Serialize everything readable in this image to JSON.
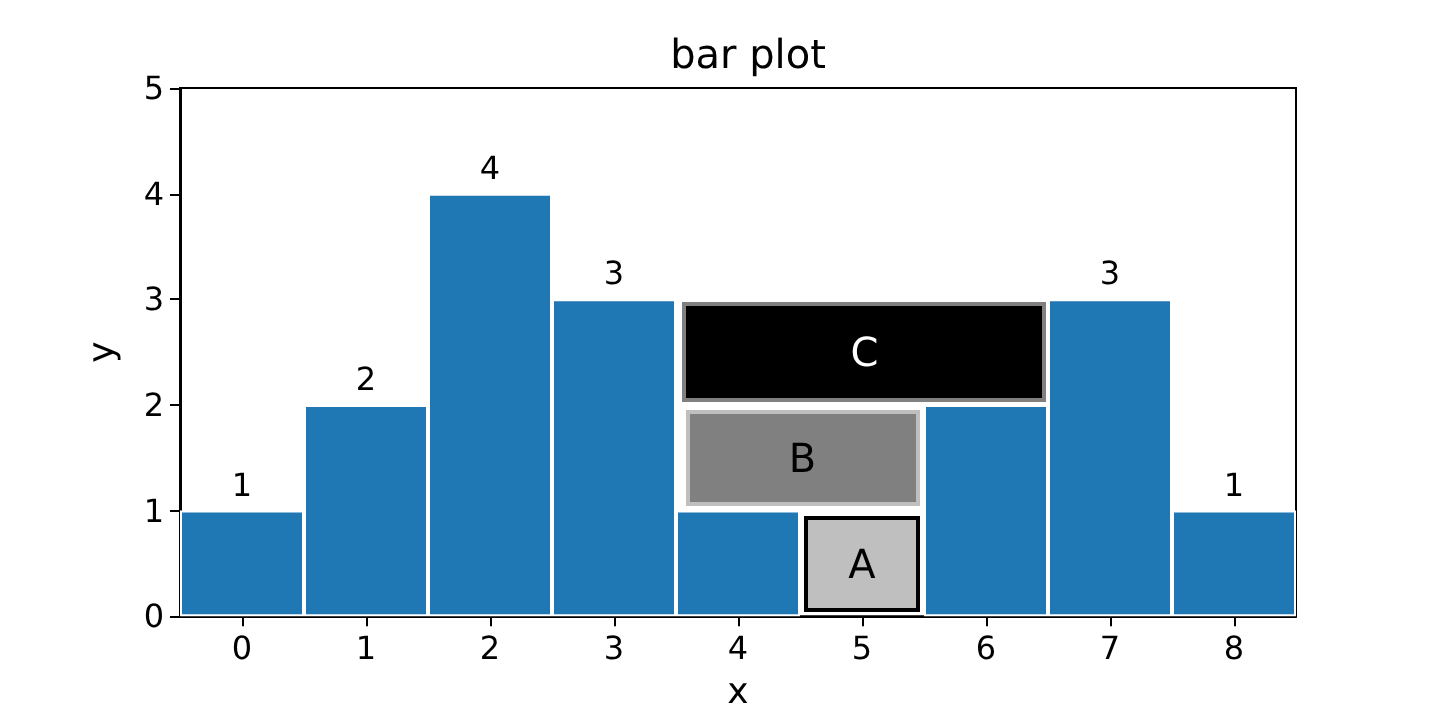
{
  "chart_data": {
    "type": "bar",
    "title": "bar plot",
    "xlabel": "x",
    "ylabel": "y",
    "categories": [
      "0",
      "1",
      "2",
      "3",
      "4",
      "5",
      "6",
      "7",
      "8"
    ],
    "values": [
      1,
      2,
      4,
      3,
      1,
      null,
      2,
      3,
      1
    ],
    "value_labels": [
      "1",
      "2",
      "4",
      "3",
      null,
      null,
      null,
      "3",
      "1"
    ],
    "color": "#1f77b4",
    "ylim": [
      0,
      5
    ],
    "yticks": [
      0,
      1,
      2,
      3,
      4,
      5
    ],
    "grid": false,
    "annotations": [
      "A",
      "B",
      "C"
    ]
  }
}
